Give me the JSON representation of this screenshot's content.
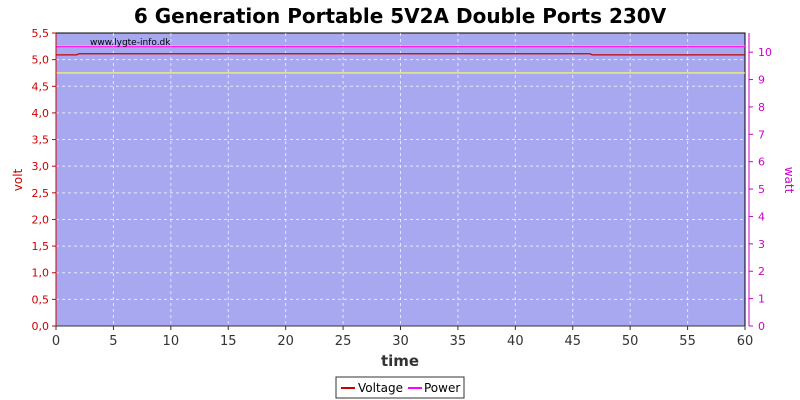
{
  "chart_data": {
    "type": "line",
    "title": "6 Generation Portable 5V2A Double Ports 230V",
    "watermark": "www.lygte-info.dk",
    "xlabel": "time",
    "ylabel_left": "volt",
    "ylabel_right": "watt",
    "xlim": [
      0,
      60
    ],
    "ylim_left": [
      0,
      5.5
    ],
    "ylim_right": [
      0,
      10.7
    ],
    "x_ticks": [
      0,
      5,
      10,
      15,
      20,
      25,
      30,
      35,
      40,
      45,
      50,
      55,
      60
    ],
    "x_tick_labels": [
      "0",
      "5",
      "10",
      "15",
      "20",
      "25",
      "30",
      "35",
      "40",
      "45",
      "50",
      "55",
      "60"
    ],
    "y_left_ticks": [
      0,
      0.5,
      1,
      1.5,
      2,
      2.5,
      3,
      3.5,
      4,
      4.5,
      5,
      5.5
    ],
    "y_left_tick_labels": [
      "0,0",
      "0,5",
      "1,0",
      "1,5",
      "2,0",
      "2,5",
      "3,0",
      "3,5",
      "4,0",
      "4,5",
      "5,0",
      "5,5"
    ],
    "y_right_ticks": [
      0,
      1,
      2,
      3,
      4,
      5,
      6,
      7,
      8,
      9,
      10
    ],
    "y_right_tick_labels": [
      "0",
      "1",
      "2",
      "3",
      "4",
      "5",
      "6",
      "7",
      "8",
      "9",
      "10"
    ],
    "grid": true,
    "legend_position": "bottom-center",
    "plot_background": "#a8a8f0",
    "series": [
      {
        "name": "Voltage",
        "axis": "left",
        "color": "#cc0000",
        "x": [
          0,
          1.8,
          2,
          46.5,
          46.7,
          60
        ],
        "values": [
          5.09,
          5.09,
          5.11,
          5.11,
          5.09,
          5.09
        ]
      },
      {
        "name": "Power",
        "axis": "right",
        "color": "#ff00ff",
        "x": [
          0,
          60
        ],
        "values": [
          10.2,
          10.2
        ]
      },
      {
        "axis": "left",
        "color": "#ffff66",
        "x": [
          0,
          60
        ],
        "values": [
          4.75,
          4.75
        ]
      },
      {
        "axis": "left",
        "color": "#ffff66",
        "x": [
          0,
          60
        ],
        "values": [
          5.25,
          5.25
        ]
      }
    ]
  }
}
